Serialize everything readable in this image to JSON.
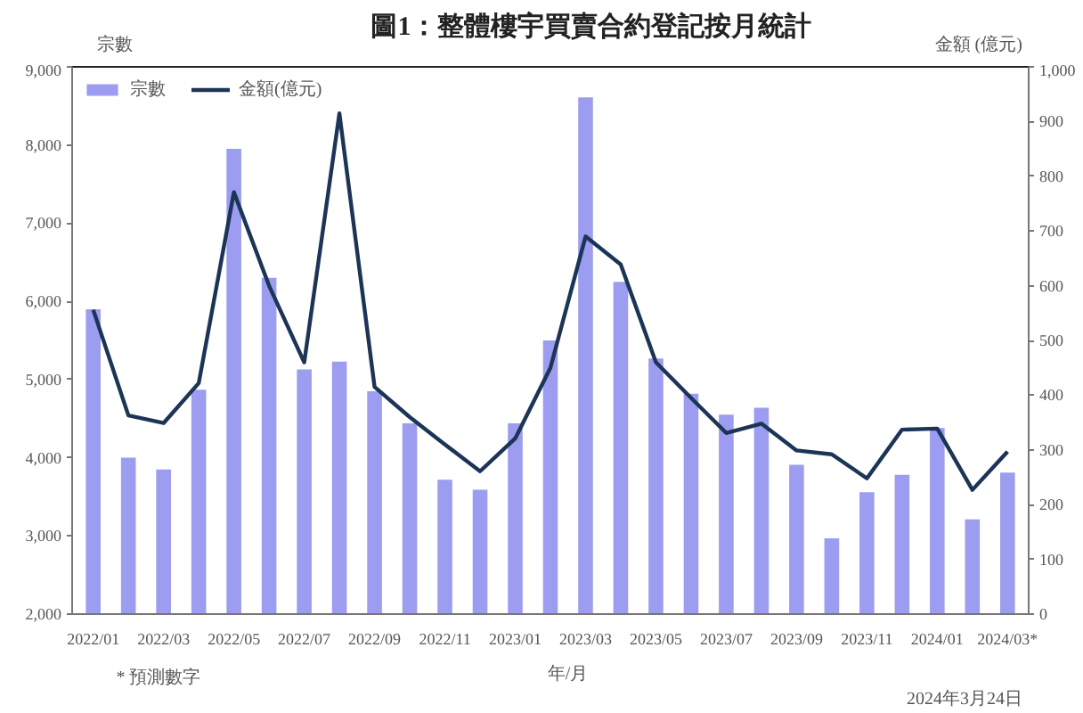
{
  "chart_data": {
    "type": "bar",
    "title": "圖1：整體樓宇買賣合約登記按月統計",
    "xlabel": "年/月",
    "ylabel": "宗數",
    "y2label": "金額 (億元)",
    "categories": [
      "2022/01",
      null,
      "2022/03",
      null,
      "2022/05",
      null,
      "2022/07",
      null,
      "2022/09",
      null,
      "2022/11",
      null,
      "2023/01",
      null,
      "2023/03",
      null,
      "2023/05",
      null,
      "2023/07",
      null,
      "2023/09",
      null,
      "2023/11",
      null,
      "2024/01",
      null,
      "2024/03*"
    ],
    "series": [
      {
        "name": "宗數",
        "color": "#9c9cf0",
        "values": [
          5900,
          4000,
          3850,
          4870,
          7950,
          6300,
          5130,
          5230,
          4850,
          4440,
          3720,
          3590,
          4440,
          5500,
          8610,
          6250,
          5270,
          4820,
          4550,
          4640,
          3910,
          2970,
          3560,
          3780,
          4380,
          3210,
          3810
        ]
      },
      {
        "name": "金額(億元)",
        "type": "line",
        "axis": "y2",
        "color": "#1c3557",
        "values": [
          556,
          363,
          349,
          422,
          771,
          600,
          460,
          915,
          415,
          360,
          310,
          261,
          321,
          450,
          690,
          639,
          460,
          395,
          331,
          348,
          299,
          292,
          248,
          337,
          339,
          227,
          297
        ]
      }
    ],
    "ylim": [
      2000,
      9000
    ],
    "yticks": [
      {
        "value": 2000,
        "label": "2,000"
      },
      {
        "value": 3000,
        "label": "3,000"
      },
      {
        "value": 4000,
        "label": "4,000"
      },
      {
        "value": 5000,
        "label": "5,000"
      },
      {
        "value": 6000,
        "label": "6,000"
      },
      {
        "value": 7000,
        "label": "7,000"
      },
      {
        "value": 8000,
        "label": "8,000"
      },
      {
        "value": 9000,
        "label": "9,000"
      }
    ],
    "y2lim": [
      0,
      1000
    ],
    "y2ticks": [
      0,
      100,
      200,
      300,
      400,
      500,
      600,
      700,
      800,
      900,
      {
        "value": 1000,
        "label": "1,000"
      }
    ],
    "grid": false,
    "legend": "top left",
    "annotations": [
      "* 預測數字",
      "2024年3月24日"
    ]
  }
}
